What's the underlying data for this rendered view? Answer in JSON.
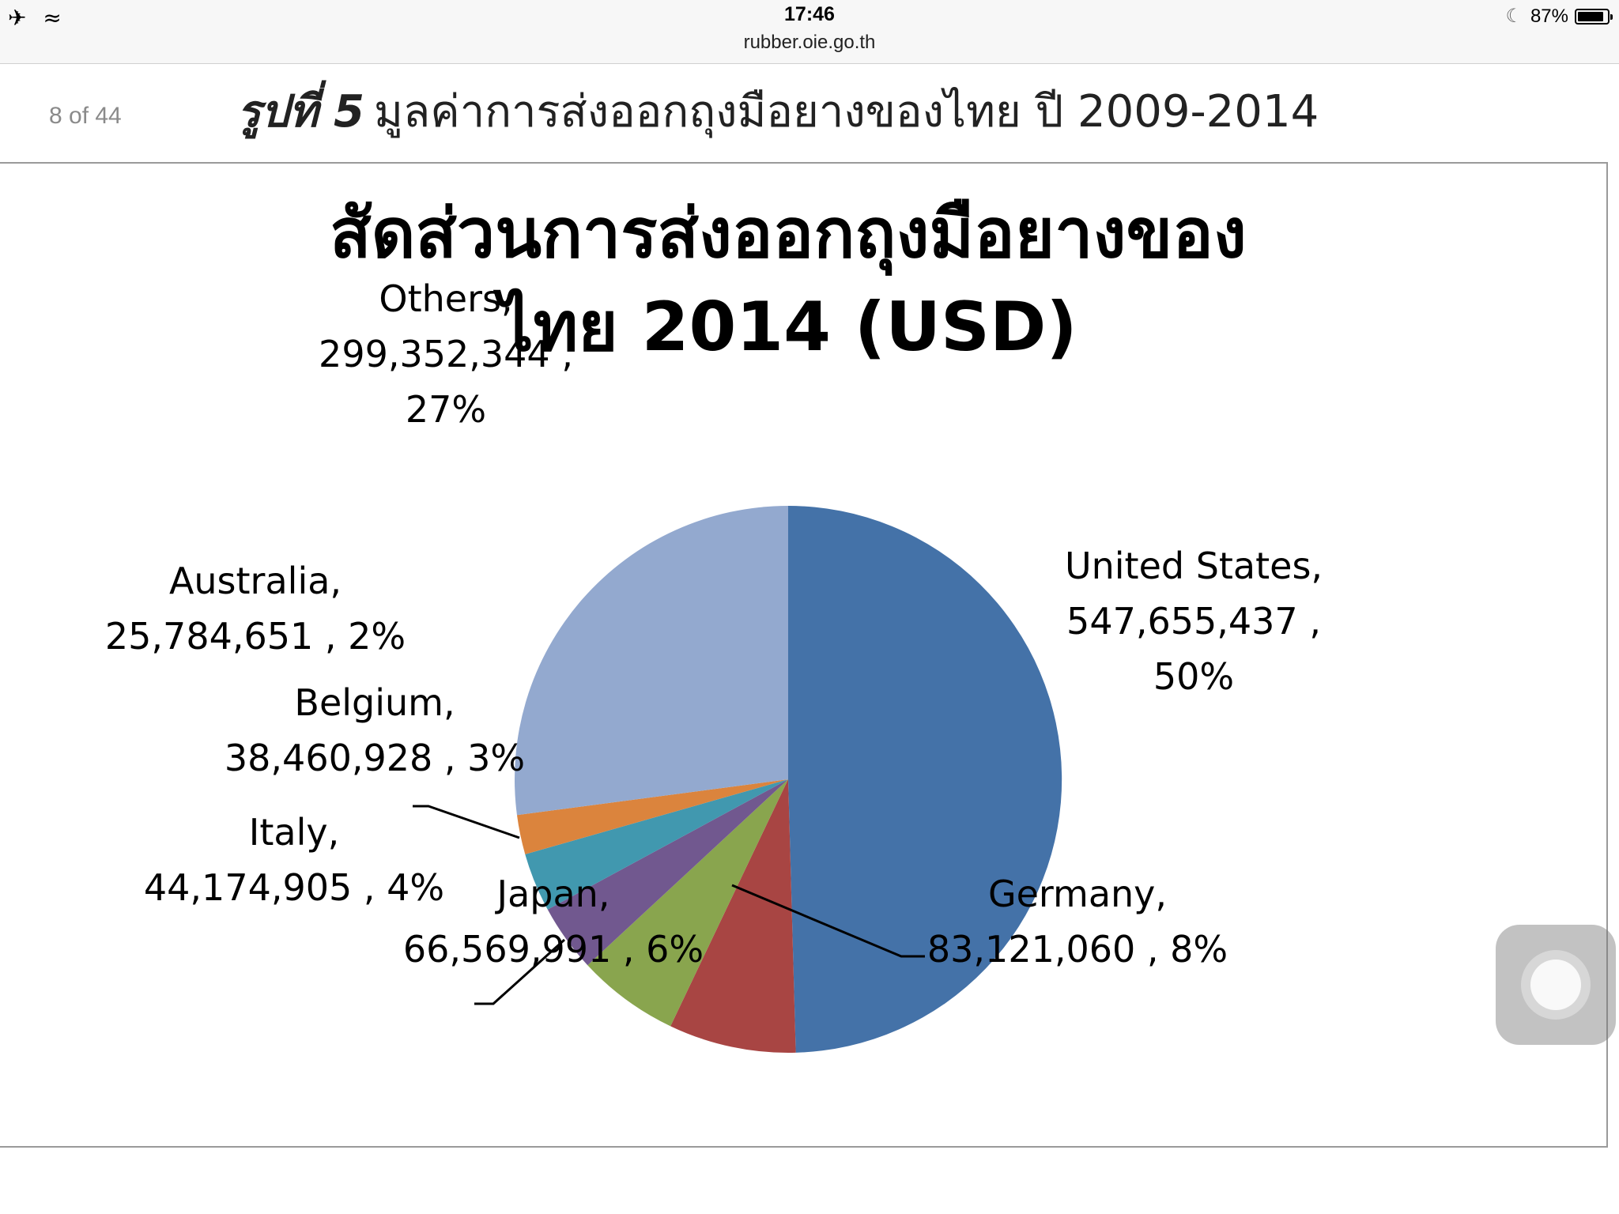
{
  "status_bar": {
    "time": "17:46",
    "url": "rubber.oie.go.th",
    "battery": "87%",
    "battery_level": 0.87,
    "icons": [
      "airplane-icon",
      "wifi-icon",
      "moon-icon",
      "battery-icon"
    ]
  },
  "header": {
    "page_counter": "8 of 44",
    "figure_no": "รูปที่ 5",
    "figure_caption": "มูลค่าการส่งออกถุงมือยางของไทย ปี 2009-2014"
  },
  "chart_data": {
    "type": "pie",
    "title": [
      "สัดส่วนการส่งออกถุงมือยางของ",
      "ไทย 2014 (USD)"
    ],
    "slices": [
      {
        "name": "United States",
        "value": 547655437,
        "percent": 50,
        "color": "#4472A8",
        "label_lines": [
          "United States,",
          "547,655,437 ,",
          "50%"
        ]
      },
      {
        "name": "Germany",
        "value": 83121060,
        "percent": 8,
        "color": "#A84543",
        "label_lines": [
          "Germany,",
          "83,121,060 , 8%"
        ]
      },
      {
        "name": "Japan",
        "value": 66569991,
        "percent": 6,
        "color": "#89A54E",
        "label_lines": [
          "Japan,",
          "66,569,991 , 6%"
        ]
      },
      {
        "name": "Italy",
        "value": 44174905,
        "percent": 4,
        "color": "#71588F",
        "label_lines": [
          "Italy,",
          "44,174,905 , 4%"
        ]
      },
      {
        "name": "Belgium",
        "value": 38460928,
        "percent": 3,
        "color": "#4198AF",
        "label_lines": [
          "Belgium,",
          "38,460,928 , 3%"
        ]
      },
      {
        "name": "Australia",
        "value": 25784651,
        "percent": 2,
        "color": "#DB843D",
        "label_lines": [
          "Australia,",
          "25,784,651 , 2%"
        ]
      },
      {
        "name": "Others",
        "value": 299352344,
        "percent": 27,
        "color": "#93A9CF",
        "label_lines": [
          "Others,",
          "299,352,344 ,",
          "27%"
        ]
      }
    ],
    "legend": "none",
    "data_labels": "outside with leader lines"
  }
}
